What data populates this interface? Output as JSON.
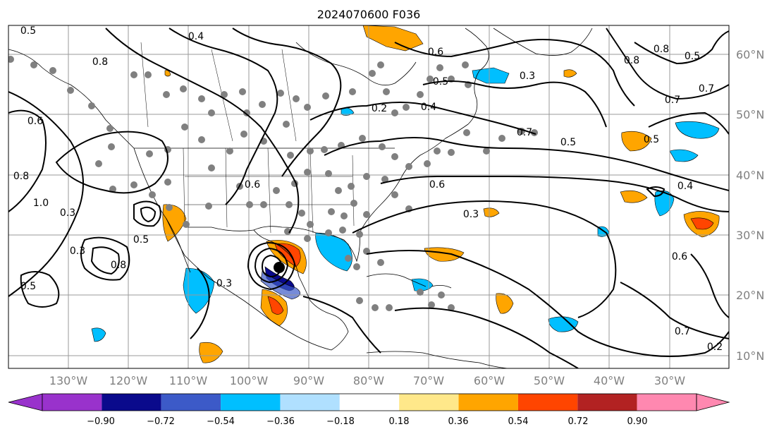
{
  "title": "2024070600 F036",
  "map": {
    "lon_labels": [
      "130°W",
      "120°W",
      "110°W",
      "100°W",
      "90°W",
      "80°W",
      "70°W",
      "60°W",
      "50°W",
      "40°W",
      "30°W"
    ],
    "lat_labels": [
      "60°N",
      "50°N",
      "40°N",
      "30°N",
      "20°N",
      "10°N"
    ],
    "contour_labels": [
      "0.5",
      "0.4",
      "0.8",
      "0.8",
      "0.5",
      "0.2",
      "0.6",
      "0.3",
      "0.6",
      "0.3",
      "0.5",
      "0.7",
      "0.7",
      "0.8",
      "0.6",
      "0.4",
      "0.5",
      "0.7",
      "0.4",
      "0.3",
      "0.6",
      "0.5",
      "0.7",
      "0.2",
      "0.5",
      "0.8",
      "1.0",
      "0.3",
      "0.3",
      "0.5",
      "0.6",
      "0.8"
    ],
    "stipple": "gray-dots",
    "shading_colors": [
      "#9932cc",
      "#0a0a8c",
      "#3c5ac8",
      "#00bfff",
      "#b0e0ff",
      "#ffffff",
      "#ffe88a",
      "#ffa500",
      "#ff4500",
      "#b22222",
      "#ff88b0"
    ]
  },
  "colorbar": {
    "ticks": [
      "−0.90",
      "−0.72",
      "−0.54",
      "−0.36",
      "−0.18",
      "0.18",
      "0.36",
      "0.54",
      "0.72",
      "0.90"
    ],
    "colors": [
      "#9932cc",
      "#0a0a8c",
      "#3c5ac8",
      "#00bfff",
      "#b0e0ff",
      "#ffffff",
      "#ffe88a",
      "#ffa500",
      "#ff4500",
      "#b22222",
      "#ff88b0"
    ]
  }
}
